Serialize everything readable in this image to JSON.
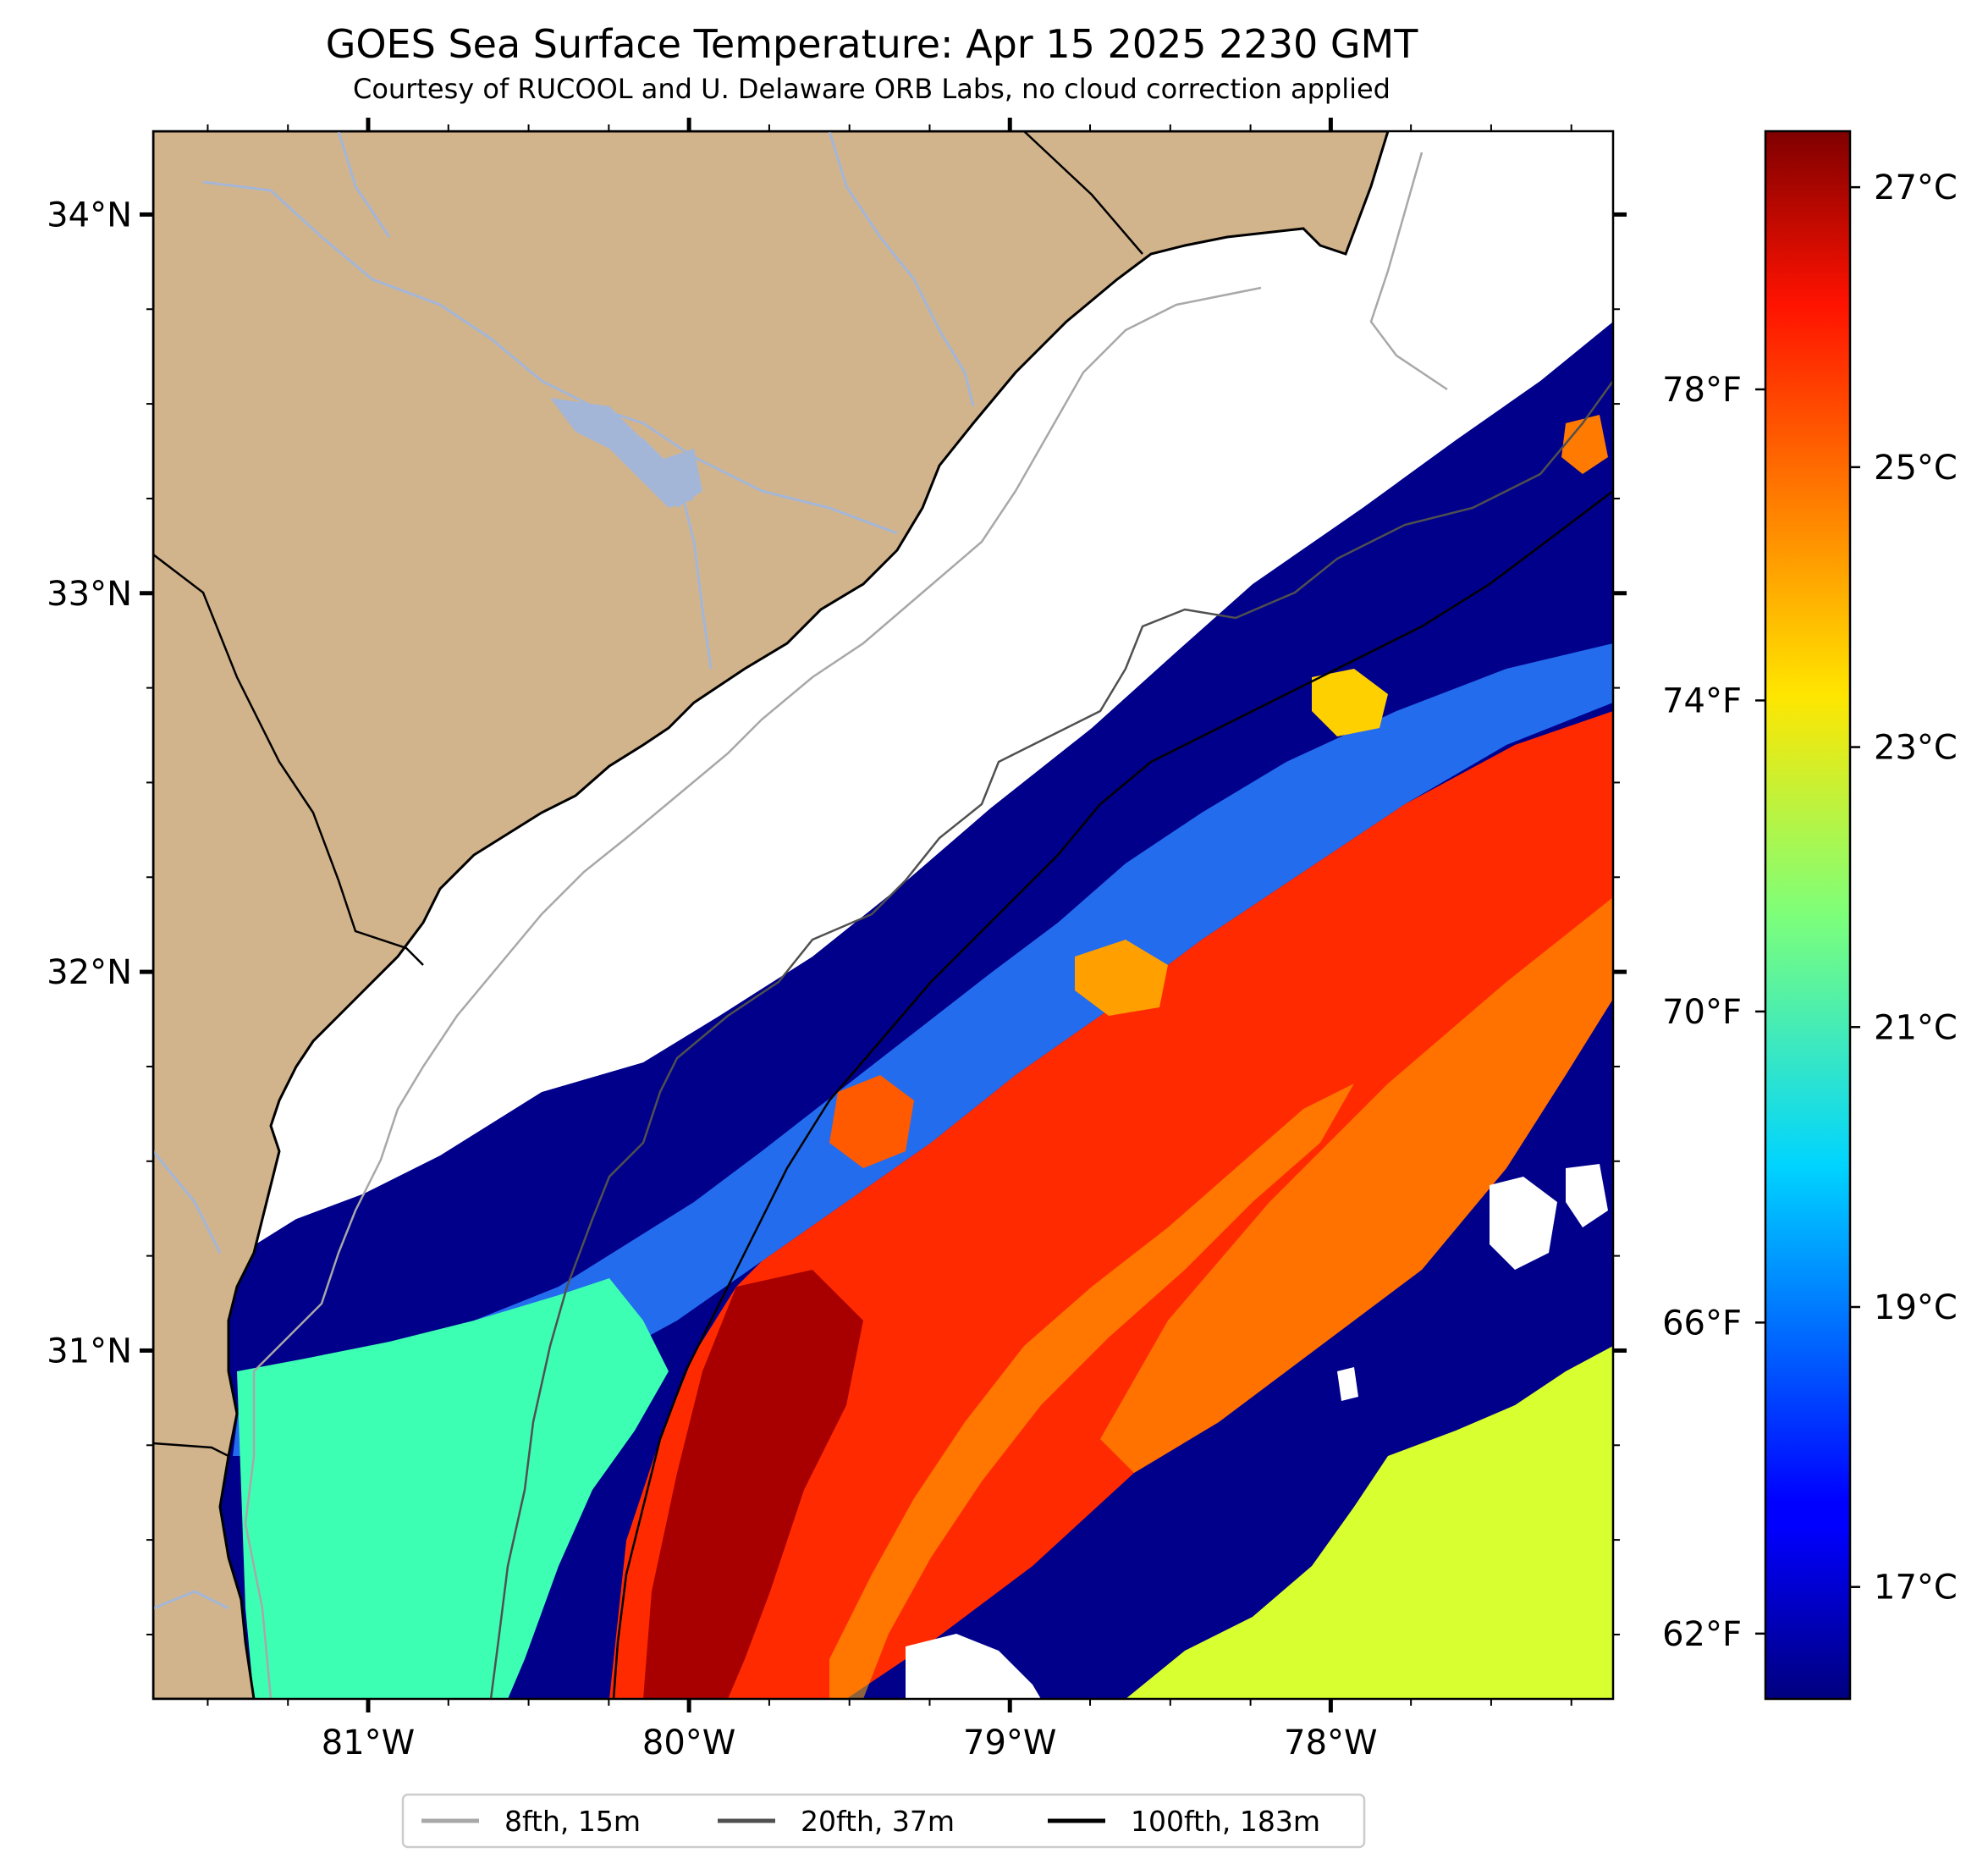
{
  "title": "GOES Sea Surface Temperature: Apr 15 2025 2230 GMT",
  "subtitle": "Courtesy of RUCOOL and U. Delaware ORB Labs, no cloud correction applied",
  "map": {
    "lon_range": [
      -81.67,
      -77.12
    ],
    "lat_range": [
      30.08,
      34.22
    ],
    "lon_ticks": [
      {
        "value": -81,
        "label": "81°W"
      },
      {
        "value": -80,
        "label": "80°W"
      },
      {
        "value": -79,
        "label": "79°W"
      },
      {
        "value": -78,
        "label": "78°W"
      }
    ],
    "lat_ticks": [
      {
        "value": 34,
        "label": "34°N"
      },
      {
        "value": 33,
        "label": "33°N"
      },
      {
        "value": 32,
        "label": "32°N"
      },
      {
        "value": 31,
        "label": "31°N"
      }
    ],
    "colors": {
      "land": "#d2b48c",
      "rivers": "#a3b6d8",
      "coastline": "#000000",
      "iso_8fth": "#a8a8a8",
      "iso_20fth": "#505050",
      "iso_100fth": "#000000"
    }
  },
  "colorbar": {
    "vmin_c": 16.2,
    "vmax_c": 27.4,
    "colormap": "jet",
    "celsius_ticks": [
      {
        "value": 17,
        "label": "17°C"
      },
      {
        "value": 19,
        "label": "19°C"
      },
      {
        "value": 21,
        "label": "21°C"
      },
      {
        "value": 23,
        "label": "23°C"
      },
      {
        "value": 25,
        "label": "25°C"
      },
      {
        "value": 27,
        "label": "27°C"
      }
    ],
    "fahrenheit_ticks": [
      {
        "value": 62,
        "label": "62°F"
      },
      {
        "value": 66,
        "label": "66°F"
      },
      {
        "value": 70,
        "label": "70°F"
      },
      {
        "value": 74,
        "label": "74°F"
      },
      {
        "value": 78,
        "label": "78°F"
      }
    ]
  },
  "legend": [
    {
      "label": "8fth, 15m",
      "color": "#a8a8a8"
    },
    {
      "label": "20fth, 37m",
      "color": "#505050"
    },
    {
      "label": "100fth, 183m",
      "color": "#000000"
    }
  ]
}
